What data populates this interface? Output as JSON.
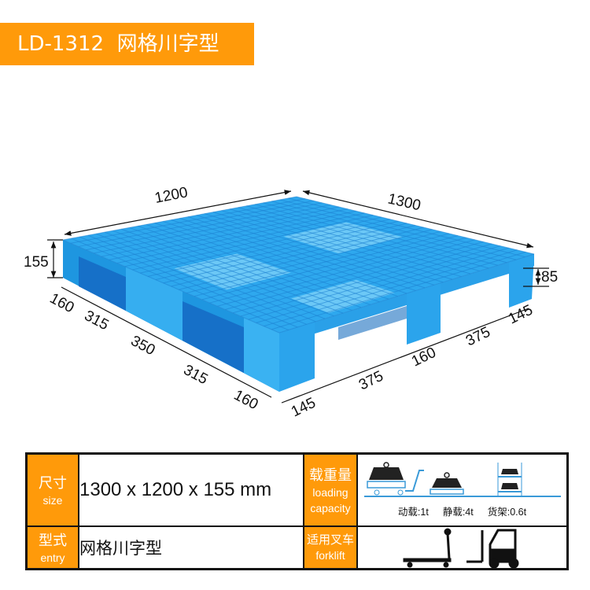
{
  "header": {
    "title": "LD-1312  网格川字型"
  },
  "colors": {
    "accent": "#ff9a0a",
    "pallet_blue": "#29a6ec",
    "pallet_light": "#6cc8f6"
  },
  "dimensions": {
    "width_back": "1200",
    "depth_back": "1300",
    "height": "155",
    "leg_height": "85",
    "left_segments": [
      "160",
      "315",
      "350",
      "315",
      "160"
    ],
    "right_segments": [
      "145",
      "375",
      "160",
      "375",
      "145"
    ]
  },
  "spec": {
    "size": {
      "label_zh": "尺寸",
      "label_en": "size",
      "value": "1300 x 1200 x 155 mm"
    },
    "capacity": {
      "label_zh": "载重量",
      "label_en1": "loading",
      "label_en2": "capacity",
      "dynamic": "动载:1t",
      "static": "静载:4t",
      "racking": "货架:0.6t",
      "icons": [
        "dynamic-load-trolley-icon",
        "static-load-icon",
        "rack-load-icon"
      ]
    },
    "entry": {
      "label_zh": "型式",
      "label_en": "entry",
      "value": "网格川字型"
    },
    "forklift": {
      "label_zh": "适用叉车",
      "label_en": "forklift",
      "icons": [
        "hand-pallet-truck-icon",
        "forklift-icon"
      ]
    }
  }
}
